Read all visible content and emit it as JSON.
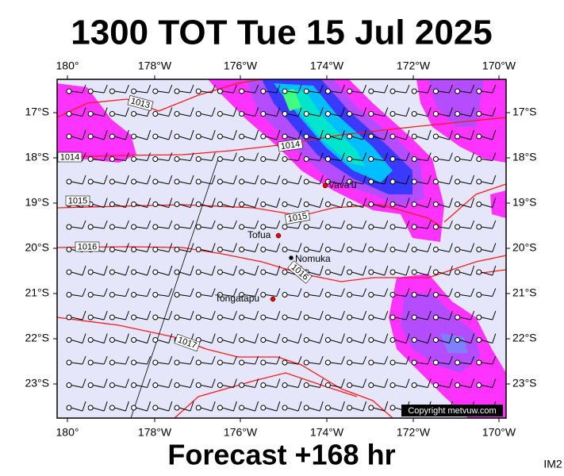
{
  "title": "1300 TOT Tue 15 Jul 2025",
  "top_axis": [
    "180°",
    "178°W",
    "176°W",
    "174°W",
    "172°W",
    "170°W"
  ],
  "bottom_axis": [
    "180°",
    "178°W",
    "176°W",
    "174°W",
    "172°W",
    "170°W"
  ],
  "left_axis": [
    "17°S",
    "18°S",
    "19°S",
    "20°S",
    "21°S",
    "22°S",
    "23°S"
  ],
  "right_axis": [
    "17°S",
    "18°S",
    "19°S",
    "20°S",
    "21°S",
    "22°S",
    "23°S"
  ],
  "isobar_labels": [
    1013,
    1014,
    1014,
    1015,
    1015,
    1016,
    1016,
    1017
  ],
  "places": [
    "Vava'u",
    "Tofua",
    "Nomuka",
    "Tongatapu"
  ],
  "copyright": "Copyright metvuw.com",
  "footer": "Forecast +168 hr",
  "corner": "IM2"
}
